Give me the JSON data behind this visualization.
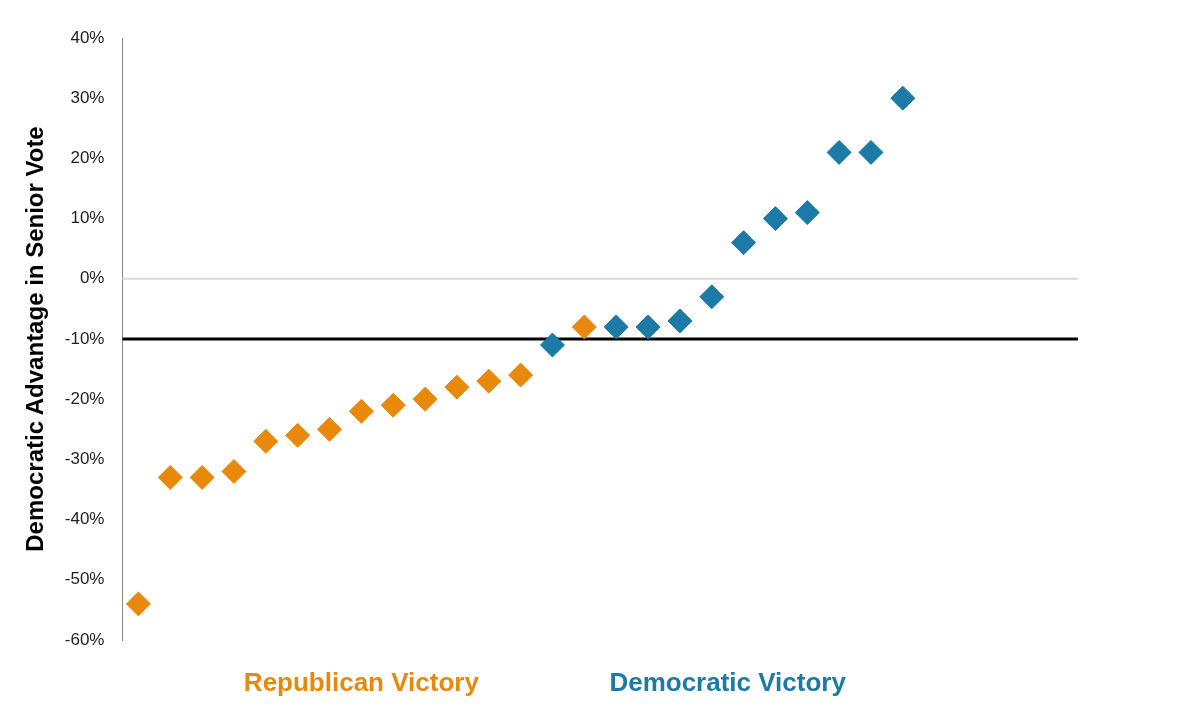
{
  "chart_data": {
    "type": "scatter",
    "ylabel": "Democratic Advantage in Senior Vote",
    "categories": [
      null,
      null,
      null,
      null,
      null,
      null,
      null,
      null,
      null,
      null,
      null,
      null,
      null,
      null,
      null,
      null,
      null,
      null,
      null,
      null,
      null,
      null,
      null,
      null,
      null,
      null,
      null,
      null,
      null,
      null
    ],
    "series": [
      {
        "name": "Republican Victory",
        "color": "#e8890c",
        "values": [
          -54,
          -33,
          -33,
          -32,
          -27,
          -26,
          -25,
          -22,
          -21,
          -20,
          -18,
          -17,
          -16,
          null,
          -8,
          null,
          null,
          null,
          null,
          null,
          null,
          null,
          null,
          null,
          null,
          null,
          null,
          null,
          null,
          null
        ]
      },
      {
        "name": "Democratic Victory",
        "color": "#1b7aa6",
        "values": [
          null,
          null,
          null,
          null,
          null,
          null,
          null,
          null,
          null,
          null,
          null,
          null,
          null,
          -11,
          null,
          -8,
          -8,
          -7,
          -3,
          6,
          10,
          11,
          21,
          21,
          30,
          null,
          null,
          null,
          null,
          null
        ]
      }
    ],
    "ylim": [
      -60,
      40
    ],
    "yticks": [
      {
        "value": -60,
        "label": "-60%"
      },
      {
        "value": -50,
        "label": "-50%"
      },
      {
        "value": -40,
        "label": "-40%"
      },
      {
        "value": -30,
        "label": "-30%"
      },
      {
        "value": -20,
        "label": "-20%"
      },
      {
        "value": -10,
        "label": "-10%"
      },
      {
        "value": 0,
        "label": "0%"
      },
      {
        "value": 10,
        "label": "10%"
      },
      {
        "value": 20,
        "label": "20%"
      },
      {
        "value": 30,
        "label": "30%"
      },
      {
        "value": 40,
        "label": "40%"
      }
    ],
    "ref_lines": [
      {
        "axis": "y",
        "value": 0,
        "color": "#d9d9d9"
      },
      {
        "axis": "y",
        "value": -10,
        "color": "#000000"
      }
    ],
    "marker": "diamond",
    "grid": false,
    "legend": "bottom",
    "tick_labels": "y"
  }
}
